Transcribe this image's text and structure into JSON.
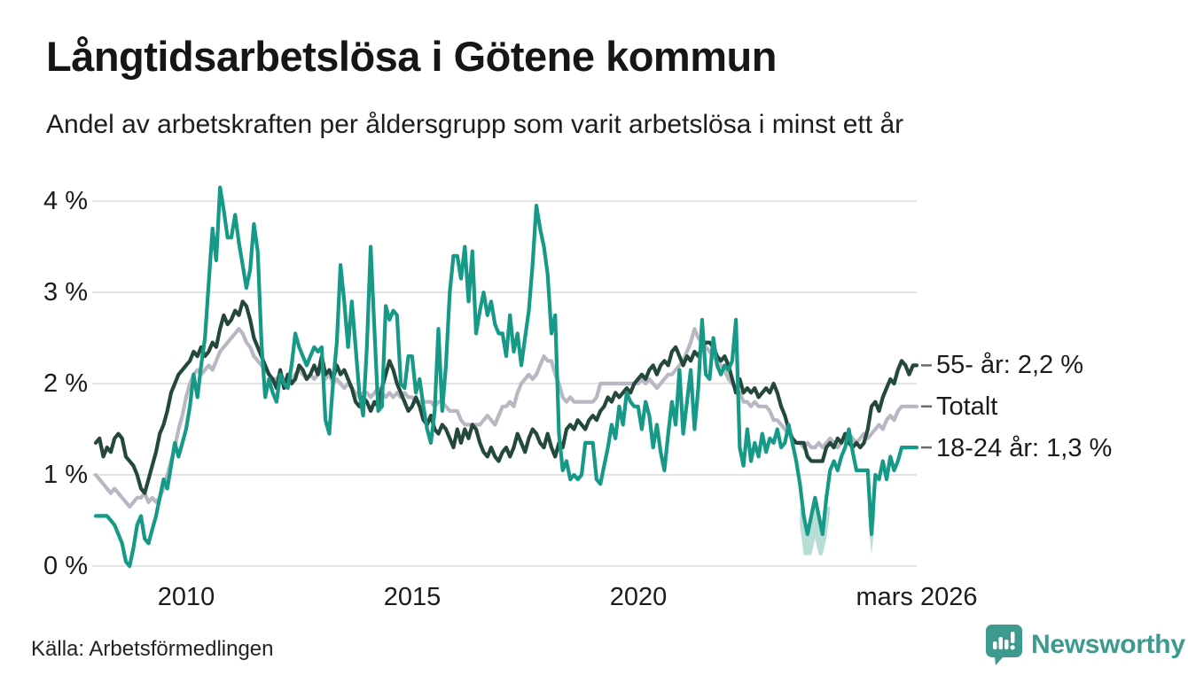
{
  "header": {
    "title": "Långtidsarbetslösa i Götene kommun",
    "subtitle": "Andel av arbetskraften per åldersgrupp som varit arbetslösa i minst ett år"
  },
  "footer": {
    "source": "Källa: Arbetsförmedlingen",
    "brand": "Newsworthy"
  },
  "colors": {
    "line_55": "#24493c",
    "line_total": "#b9b8c2",
    "line_18_24": "#169a87",
    "uncertainty_band": "#b7ddd5",
    "grid": "#e4e4e4",
    "legend_tick": "#6b6b6b",
    "brand_teal": "#3d9a8e",
    "text": "#1b1b1b"
  },
  "chart_data": {
    "type": "line",
    "title": "Långtidsarbetslösa i Götene kommun",
    "subtitle": "Andel av arbetskraften per åldersgrupp som varit arbetslösa i minst ett år",
    "x_start": "2008-01",
    "x_end": "2026-03",
    "frequency": "monthly",
    "ylim": [
      0,
      4.3
    ],
    "grid": "horizontal",
    "legend_position": "right-of-line-ends",
    "y_tick_labels": [
      "0 %",
      "1 %",
      "2 %",
      "3 %",
      "4 %"
    ],
    "y_tick_values": [
      0,
      1,
      2,
      3,
      4
    ],
    "x_tick_labels": [
      "2010",
      "2015",
      "2020",
      "mars 2026"
    ],
    "x_tick_month_indices": [
      24,
      84,
      144,
      218
    ],
    "series": [
      {
        "name": "55- år",
        "label": "55- år: 2,2 %",
        "end_value": 2.2,
        "color": "#24493c",
        "values": [
          1.35,
          1.4,
          1.2,
          1.3,
          1.25,
          1.4,
          1.45,
          1.4,
          1.2,
          1.15,
          1.1,
          1,
          0.85,
          0.8,
          0.95,
          1.1,
          1.25,
          1.45,
          1.55,
          1.7,
          1.9,
          2,
          2.1,
          2.15,
          2.2,
          2.25,
          2.35,
          2.3,
          2.4,
          2.3,
          2.35,
          2.45,
          2.4,
          2.6,
          2.75,
          2.65,
          2.7,
          2.8,
          2.75,
          2.9,
          2.85,
          2.7,
          2.5,
          2.4,
          2.3,
          2.2,
          2.1,
          2.05,
          1.95,
          2.15,
          1.95,
          2.1,
          2,
          2.05,
          2.2,
          2.15,
          2.05,
          2.1,
          2.2,
          2.1,
          2.3,
          2.1,
          2.15,
          2.05,
          2.2,
          2.1,
          2.15,
          2.05,
          1.95,
          1.8,
          1.75,
          1.85,
          1.8,
          1.7,
          1.8,
          1.75,
          1.95,
          2.1,
          2.25,
          2.15,
          2,
          1.9,
          1.8,
          1.7,
          1.75,
          1.85,
          1.75,
          1.6,
          1.55,
          1.65,
          1.5,
          1.45,
          1.55,
          1.5,
          1.4,
          1.3,
          1.5,
          1.35,
          1.5,
          1.4,
          1.55,
          1.5,
          1.35,
          1.25,
          1.2,
          1.3,
          1.2,
          1.15,
          1.25,
          1.3,
          1.2,
          1.3,
          1.45,
          1.35,
          1.25,
          1.4,
          1.5,
          1.45,
          1.35,
          1.3,
          1.45,
          1.3,
          1.2,
          1.35,
          1.3,
          1.5,
          1.55,
          1.5,
          1.6,
          1.55,
          1.5,
          1.6,
          1.65,
          1.6,
          1.7,
          1.75,
          1.85,
          1.8,
          1.9,
          1.85,
          1.9,
          1.95,
          1.9,
          2,
          2.05,
          2.1,
          2.05,
          2.15,
          2.2,
          2.1,
          2.2,
          2.25,
          2.2,
          2.35,
          2.4,
          2.3,
          2.2,
          2.3,
          2.25,
          2.35,
          2.3,
          2.4,
          2.45,
          2.45,
          2.4,
          2.3,
          2.25,
          2.3,
          2.2,
          2.05,
          1.9,
          2.05,
          1.9,
          1.95,
          1.9,
          1.95,
          1.85,
          1.9,
          1.95,
          1.9,
          2,
          1.9,
          1.75,
          1.65,
          1.5,
          1.4,
          1.35,
          1.35,
          1.35,
          1.2,
          1.15,
          1.15,
          1.15,
          1.15,
          1.3,
          1.35,
          1.3,
          1.4,
          1.35,
          1.45,
          1.35,
          1.3,
          1.35,
          1.3,
          1.35,
          1.5,
          1.75,
          1.8,
          1.7,
          1.85,
          1.95,
          2.05,
          2,
          2.15,
          2.25,
          2.2,
          2.1,
          2.2,
          2.2
        ]
      },
      {
        "name": "Totalt",
        "label": "Totalt",
        "end_value": 1.75,
        "color": "#b9b8c2",
        "values": [
          1,
          0.95,
          0.9,
          0.85,
          0.8,
          0.85,
          0.8,
          0.75,
          0.7,
          0.65,
          0.7,
          0.75,
          0.75,
          0.8,
          0.7,
          0.75,
          0.7,
          0.75,
          0.85,
          1,
          1.15,
          1.3,
          1.5,
          1.65,
          1.85,
          2,
          2.1,
          2.15,
          2.1,
          2.15,
          2.2,
          2.15,
          2.25,
          2.35,
          2.4,
          2.45,
          2.5,
          2.55,
          2.6,
          2.55,
          2.45,
          2.4,
          2.3,
          2.25,
          2.2,
          2.15,
          2.1,
          2.05,
          2.05,
          2.1,
          2.05,
          2,
          2.05,
          2.1,
          2.15,
          2.1,
          2.05,
          2.1,
          2.05,
          2.1,
          2.15,
          2.05,
          2.1,
          2,
          2.05,
          2,
          1.95,
          2,
          1.95,
          1.9,
          1.85,
          1.9,
          1.9,
          1.85,
          1.9,
          1.95,
          1.9,
          1.85,
          1.9,
          1.85,
          1.9,
          1.85,
          1.9,
          1.85,
          1.85,
          1.8,
          1.8,
          1.8,
          1.8,
          1.8,
          1.75,
          1.8,
          1.8,
          1.75,
          1.7,
          1.7,
          1.7,
          1.6,
          1.55,
          1.55,
          1.55,
          1.55,
          1.55,
          1.6,
          1.65,
          1.6,
          1.55,
          1.65,
          1.75,
          1.75,
          1.8,
          1.75,
          1.9,
          2,
          2.05,
          2.1,
          2.05,
          2.1,
          2.2,
          2.3,
          2.25,
          2.25,
          2.1,
          2,
          1.85,
          1.8,
          1.85,
          1.8,
          1.8,
          1.8,
          1.8,
          1.8,
          1.8,
          1.85,
          2,
          2,
          2,
          2,
          2,
          2,
          2,
          2,
          2,
          2,
          2,
          2.05,
          2,
          2.05,
          2,
          1.95,
          2,
          2.05,
          2.1,
          2.1,
          2.15,
          2.2,
          2.25,
          2.35,
          2.45,
          2.6,
          2.5,
          2.45,
          2.4,
          2.35,
          2.3,
          2.25,
          2.2,
          2.15,
          2.05,
          2,
          1.95,
          1.9,
          1.8,
          1.8,
          1.75,
          1.8,
          1.75,
          1.75,
          1.75,
          1.7,
          1.6,
          1.6,
          1.55,
          1.5,
          1.45,
          1.4,
          1.35,
          1.35,
          1.3,
          1.35,
          1.3,
          1.3,
          1.35,
          1.3,
          1.35,
          1.4,
          1.35,
          1.3,
          1.35,
          1.4,
          1.45,
          1.4,
          1.35,
          1.4,
          1.45,
          1.4,
          1.45,
          1.5,
          1.55,
          1.5,
          1.6,
          1.65,
          1.6,
          1.7,
          1.75,
          1.75,
          1.75,
          1.75,
          1.75
        ]
      },
      {
        "name": "18-24 år",
        "label": "18-24 år: 1,3 %",
        "end_value": 1.3,
        "color": "#169a87",
        "uncertainty_ranges": [
          [
            187,
            195
          ],
          [
            205,
            207
          ]
        ],
        "values": [
          0.55,
          0.55,
          0.55,
          0.55,
          0.5,
          0.45,
          0.35,
          0.25,
          0.05,
          0,
          0.2,
          0.45,
          0.55,
          0.3,
          0.25,
          0.4,
          0.55,
          0.75,
          0.95,
          0.85,
          1.1,
          1.35,
          1.2,
          1.35,
          1.5,
          1.75,
          2.1,
          1.85,
          2.2,
          2.5,
          3.1,
          3.7,
          3.35,
          4.15,
          3.9,
          3.6,
          3.6,
          3.85,
          3.55,
          3.3,
          3.05,
          3.25,
          3.75,
          3.45,
          2.45,
          1.85,
          2.05,
          1.9,
          1.8,
          2.1,
          2,
          1.95,
          2.2,
          2.55,
          2.4,
          2.3,
          2.2,
          2.3,
          2.4,
          2.35,
          2.4,
          1.6,
          1.45,
          2,
          2.45,
          3.3,
          2.9,
          2.4,
          2.9,
          2.4,
          1.9,
          1.65,
          2.4,
          3.5,
          2.6,
          1.7,
          1.75,
          2.85,
          2.7,
          2.8,
          2.75,
          2,
          1.95,
          2.3,
          2.3,
          1.9,
          2.05,
          1.75,
          1.5,
          1.35,
          1.7,
          2.6,
          1.7,
          2.2,
          3,
          3.4,
          3.4,
          3.15,
          3.5,
          2.9,
          3.45,
          2.55,
          2.8,
          3,
          2.75,
          2.9,
          2.65,
          2.55,
          2.55,
          2.3,
          2.75,
          2.35,
          2.55,
          2.2,
          2.5,
          2.8,
          3.3,
          3.95,
          3.7,
          3.5,
          3.2,
          2.55,
          2.75,
          1.45,
          1.05,
          1.15,
          0.95,
          1,
          0.95,
          1,
          1.35,
          1.35,
          1.35,
          0.95,
          0.9,
          1.1,
          1.3,
          1.55,
          1.4,
          1.75,
          1.55,
          1.9,
          1.8,
          1.75,
          1.75,
          1.5,
          1.8,
          1.65,
          1.3,
          1.55,
          1.25,
          1.05,
          1.45,
          1.8,
          1.55,
          2.15,
          1.45,
          1.8,
          2.15,
          1.5,
          1.95,
          2.7,
          2.1,
          2.05,
          2.5,
          2.2,
          2.1,
          2.2,
          2.15,
          2.25,
          2.7,
          1.3,
          1.1,
          1.5,
          1.15,
          1.35,
          1.2,
          1.45,
          1.25,
          1.4,
          1.35,
          1.5,
          1.3,
          1.35,
          1.55,
          1.35,
          1.15,
          0.9,
          0.55,
          0.35,
          0.55,
          0.75,
          0.55,
          0.35,
          0.75,
          1.05,
          1.15,
          1.05,
          1.2,
          1.3,
          1.5,
          1.25,
          1.05,
          1.05,
          1.05,
          1.05,
          0.35,
          1,
          0.95,
          1.15,
          0.95,
          1.2,
          1.05,
          1.15,
          1.3,
          1.3,
          1.3,
          1.3,
          1.3
        ]
      }
    ]
  }
}
